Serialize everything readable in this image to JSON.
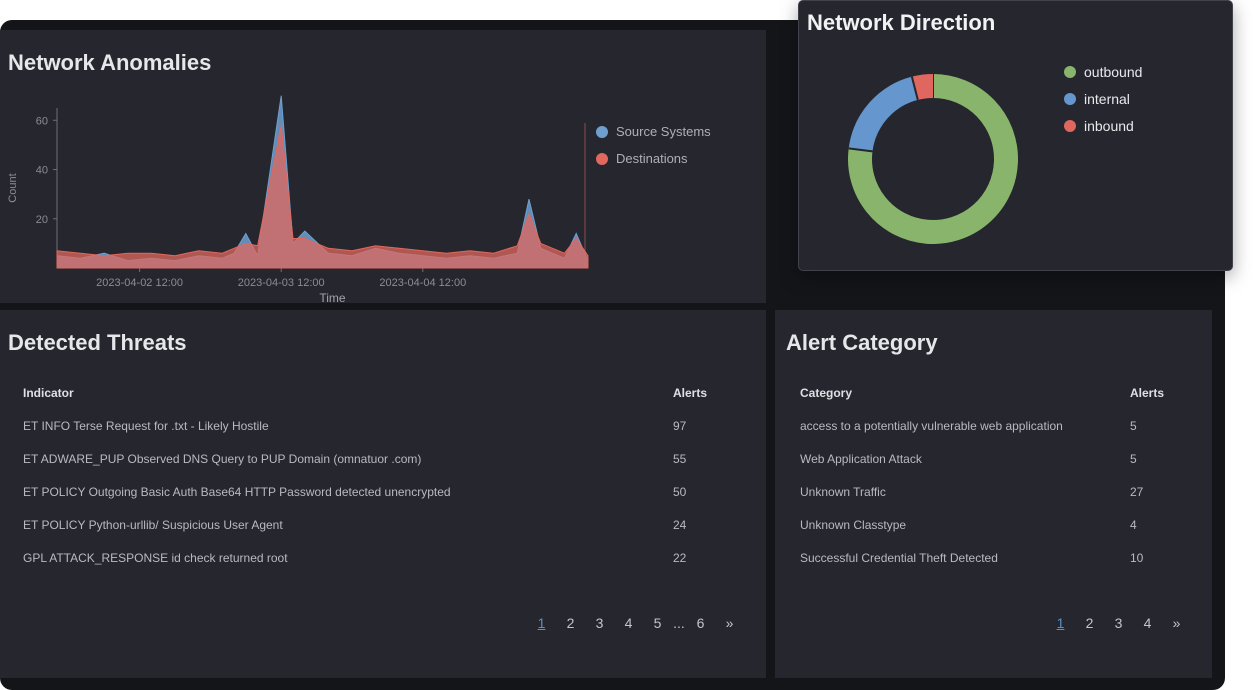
{
  "anomalies": {
    "title": "Network Anomalies",
    "legend": [
      {
        "label": "Source Systems",
        "color": "#6f9fce"
      },
      {
        "label": "Destinations",
        "color": "#e0685e"
      }
    ],
    "ylabel": "Count",
    "xlabel": "Time",
    "yticks": [
      "60",
      "40",
      "20"
    ],
    "xticks": [
      "2023-04-02 12:00",
      "2023-04-03 12:00",
      "2023-04-04 12:00"
    ]
  },
  "chart_data": {
    "type": "area",
    "title": "Network Anomalies",
    "xlabel": "Time",
    "ylabel": "Count",
    "ylim": [
      0,
      65
    ],
    "x": [
      "2023-04-01 22:00",
      "2023-04-02 02:00",
      "2023-04-02 06:00",
      "2023-04-02 10:00",
      "2023-04-02 14:00",
      "2023-04-02 18:00",
      "2023-04-02 22:00",
      "2023-04-03 02:00",
      "2023-04-03 04:00",
      "2023-04-03 06:00",
      "2023-04-03 08:00",
      "2023-04-03 12:00",
      "2023-04-03 14:00",
      "2023-04-03 16:00",
      "2023-04-03 20:00",
      "2023-04-04 00:00",
      "2023-04-04 04:00",
      "2023-04-04 08:00",
      "2023-04-04 12:00",
      "2023-04-04 16:00",
      "2023-04-04 20:00",
      "2023-04-05 00:00",
      "2023-04-05 04:00",
      "2023-04-05 06:00",
      "2023-04-05 08:00",
      "2023-04-05 12:00",
      "2023-04-05 14:00",
      "2023-04-05 16:00"
    ],
    "series": [
      {
        "name": "Source Systems",
        "values": [
          5,
          4,
          6,
          3,
          4,
          3,
          5,
          4,
          6,
          14,
          5,
          70,
          10,
          15,
          6,
          5,
          8,
          6,
          5,
          4,
          5,
          4,
          6,
          28,
          8,
          4,
          14,
          3
        ]
      },
      {
        "name": "Destinations",
        "values": [
          7,
          6,
          5,
          6,
          6,
          5,
          7,
          6,
          8,
          10,
          9,
          58,
          12,
          12,
          8,
          7,
          9,
          8,
          7,
          6,
          7,
          6,
          9,
          22,
          10,
          6,
          12,
          5
        ]
      }
    ],
    "legend": "top-right",
    "grid": false
  },
  "threats": {
    "title": "Detected Threats",
    "columns": [
      "Indicator",
      "Alerts"
    ],
    "rows": [
      [
        "ET INFO Terse Request for .txt - Likely Hostile",
        "97"
      ],
      [
        "ET ADWARE_PUP Observed DNS Query to PUP Domain (omnatuor .com)",
        "55"
      ],
      [
        "ET POLICY Outgoing Basic Auth Base64 HTTP Password detected unencrypted",
        "50"
      ],
      [
        "ET POLICY Python-urllib/ Suspicious User Agent",
        "24"
      ],
      [
        "GPL ATTACK_RESPONSE id check returned root",
        "22"
      ]
    ],
    "pager": [
      "1",
      "2",
      "3",
      "4",
      "5",
      "...",
      "6",
      "»"
    ]
  },
  "category": {
    "title": "Alert Category",
    "columns": [
      "Category",
      "Alerts"
    ],
    "rows": [
      [
        "access to a potentially vulnerable web application",
        "5"
      ],
      [
        "Web Application Attack",
        "5"
      ],
      [
        "Unknown Traffic",
        "27"
      ],
      [
        "Unknown Classtype",
        "4"
      ],
      [
        "Successful Credential Theft Detected",
        "10"
      ]
    ],
    "pager": [
      "1",
      "2",
      "3",
      "4",
      "»"
    ]
  },
  "direction": {
    "title": "Network Direction",
    "legend": [
      {
        "label": "outbound",
        "color": "#88b56b",
        "value": 77
      },
      {
        "label": "internal",
        "color": "#6596cd",
        "value": 19
      },
      {
        "label": "inbound",
        "color": "#e06660",
        "value": 4
      }
    ]
  }
}
